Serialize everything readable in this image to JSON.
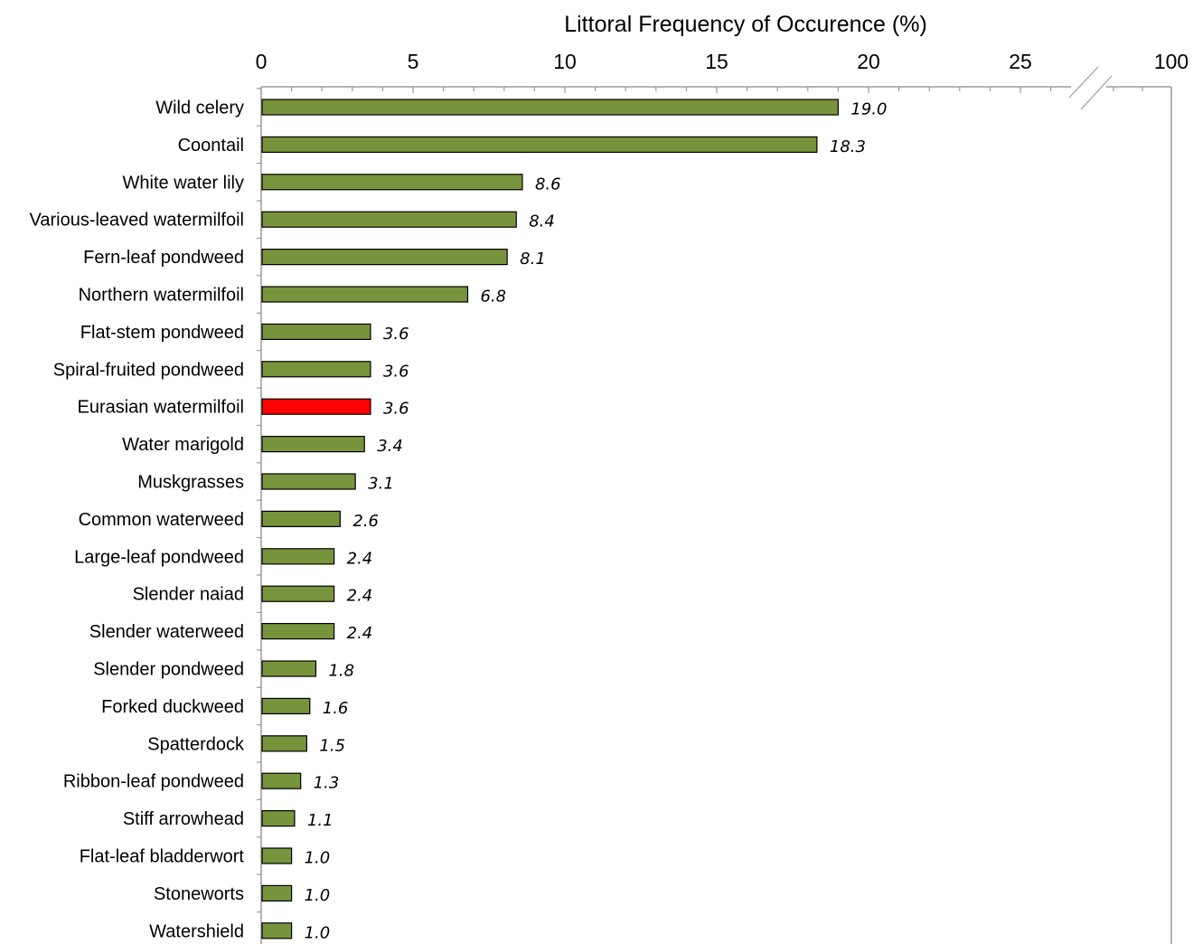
{
  "chart_data": {
    "type": "bar",
    "orientation": "horizontal",
    "title": "",
    "xlabel": "Littoral Frequency of Occurence (%)",
    "ylabel": "",
    "axis_position": "top",
    "axis_break": true,
    "xlim": [
      0,
      100
    ],
    "x_ticks": [
      {
        "value": 0,
        "label": "0"
      },
      {
        "value": 5,
        "label": "5"
      },
      {
        "value": 10,
        "label": "10"
      },
      {
        "value": 15,
        "label": "15"
      },
      {
        "value": 20,
        "label": "20"
      },
      {
        "value": 25,
        "label": "25"
      },
      {
        "value": 100,
        "label": "100"
      }
    ],
    "categories": [
      "Wild celery",
      "Coontail",
      "White water lily",
      "Various-leaved watermilfoil",
      "Fern-leaf pondweed",
      "Northern watermilfoil",
      "Flat-stem pondweed",
      "Spiral-fruited pondweed",
      "Eurasian watermilfoil",
      "Water marigold",
      "Muskgrasses",
      "Common waterweed",
      "Large-leaf pondweed",
      "Slender naiad",
      "Slender waterweed",
      "Slender pondweed",
      "Forked duckweed",
      "Spatterdock",
      "Ribbon-leaf pondweed",
      "Stiff arrowhead",
      "Flat-leaf bladderwort",
      "Stoneworts",
      "Watershield"
    ],
    "values": [
      19.0,
      18.3,
      8.6,
      8.4,
      8.1,
      6.8,
      3.6,
      3.6,
      3.6,
      3.4,
      3.1,
      2.6,
      2.4,
      2.4,
      2.4,
      1.8,
      1.6,
      1.5,
      1.3,
      1.1,
      1.0,
      1.0,
      1.0
    ],
    "value_labels": [
      "19.0",
      "18.3",
      "8.6",
      "8.4",
      "8.1",
      "6.8",
      "3.6",
      "3.6",
      "3.6",
      "3.4",
      "3.1",
      "2.6",
      "2.4",
      "2.4",
      "2.4",
      "1.8",
      "1.6",
      "1.5",
      "1.3",
      "1.1",
      "1.0",
      "1.0",
      "1.0"
    ],
    "colors": {
      "default": "#77933c",
      "highlight": "#ff0000",
      "highlight_category": "Eurasian watermilfoil"
    },
    "grid": false,
    "legend": "none"
  }
}
